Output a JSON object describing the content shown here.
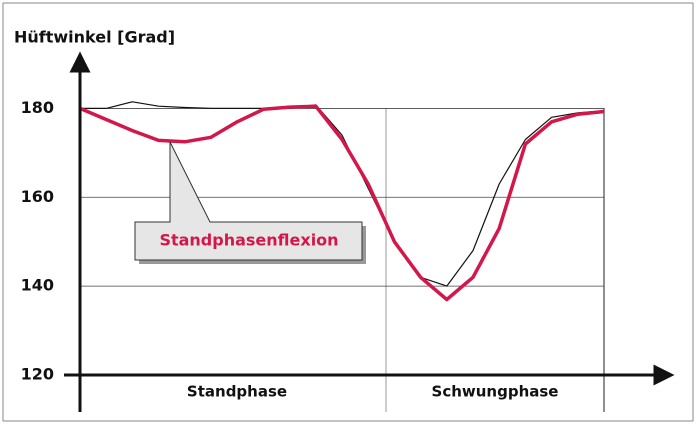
{
  "chart_data": {
    "type": "line",
    "title": "Hüftwinkel [Grad]",
    "categories": [
      null,
      null,
      null,
      null,
      null,
      null,
      null,
      null,
      null,
      null,
      null,
      null,
      null,
      null,
      null,
      null,
      null,
      null,
      null,
      null,
      null
    ],
    "series": [
      {
        "name": null,
        "color": "#111111",
        "values": [
          180,
          180,
          181.5,
          180.5,
          180.2,
          180,
          180,
          180,
          180,
          180.8,
          174,
          162,
          150,
          142,
          140,
          148,
          163,
          173,
          178,
          179,
          179.5
        ]
      },
      {
        "name": null,
        "color": "#d4174a",
        "values": [
          180,
          177.5,
          175,
          172.8,
          172.5,
          173.5,
          177,
          179.8,
          180.3,
          180.5,
          173,
          163,
          150,
          142,
          137,
          142,
          153,
          172,
          177,
          178.7,
          179.3
        ]
      }
    ],
    "ylim": [
      120,
      190
    ],
    "yticks": [
      120,
      140,
      160,
      180
    ],
    "grid": true,
    "phases": [
      "Standphase",
      "Schwungphase"
    ],
    "annotation": "Standphasenflexion"
  }
}
